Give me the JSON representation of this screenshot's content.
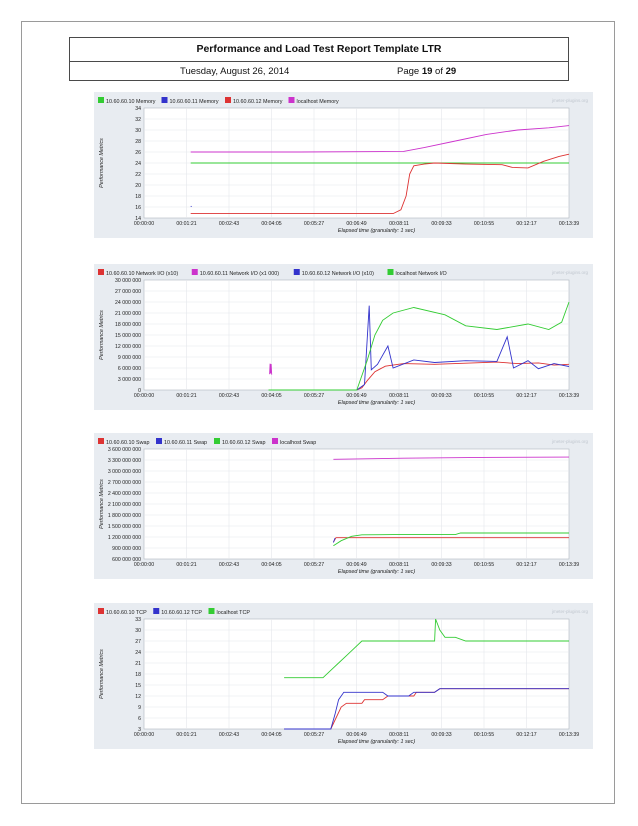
{
  "header": {
    "title": "Performance and Load Test Report Template LTR",
    "date": "Tuesday, August 26, 2014",
    "page_prefix": "Page",
    "page_current": "19",
    "page_of": "of",
    "page_total": "29"
  },
  "chart_data": [
    {
      "type": "line",
      "watermark": "jmeter-plugins.org",
      "ylabel": "Performance Metrics",
      "xlabel": "Elapsed time (granularity: 1 sec)",
      "x_ticks": [
        "00:00:00",
        "00:01:21",
        "00:02:43",
        "00:04:05",
        "00:05:27",
        "00:06:49",
        "00:08:11",
        "00:09:33",
        "00:10:55",
        "00:12:17",
        "00:13:39"
      ],
      "xlim_sec": [
        0,
        819
      ],
      "ylim": [
        14,
        34
      ],
      "y_ticks": [
        "14",
        "16",
        "18",
        "20",
        "22",
        "24",
        "26",
        "28",
        "30",
        "32",
        "34"
      ],
      "series": [
        {
          "name": "10.60.60.10 Memory",
          "color": "#33cc33",
          "points": [
            [
              90,
              24
            ],
            [
              819,
              24
            ]
          ]
        },
        {
          "name": "10.60.60.11 Memory",
          "color": "#3333cc",
          "points": [
            [
              90,
              16.1
            ],
            [
              92,
              16.1
            ]
          ]
        },
        {
          "name": "10.60.60.12 Memory",
          "color": "#dd3333",
          "points": [
            [
              90,
              14.8
            ],
            [
              480,
              14.8
            ],
            [
              495,
              15.5
            ],
            [
              505,
              18
            ],
            [
              512,
              22
            ],
            [
              520,
              23.5
            ],
            [
              540,
              23.8
            ],
            [
              560,
              24
            ],
            [
              620,
              23.8
            ],
            [
              690,
              23.7
            ],
            [
              710,
              23.2
            ],
            [
              740,
              23.1
            ],
            [
              770,
              24.3
            ],
            [
              800,
              25.2
            ],
            [
              819,
              25.6
            ]
          ]
        },
        {
          "name": "localhost Memory",
          "color": "#cc33cc",
          "points": [
            [
              90,
              26
            ],
            [
              300,
              26
            ],
            [
              500,
              26.1
            ],
            [
              540,
              26.8
            ],
            [
              600,
              28
            ],
            [
              660,
              29.2
            ],
            [
              720,
              30
            ],
            [
              780,
              30.4
            ],
            [
              819,
              30.8
            ]
          ]
        }
      ]
    },
    {
      "type": "line",
      "watermark": "jmeter-plugins.org",
      "ylabel": "Performance Metrics",
      "xlabel": "Elapsed time (granularity: 1 sec)",
      "x_ticks": [
        "00:00:00",
        "00:01:21",
        "00:02:43",
        "00:04:05",
        "00:05:27",
        "00:06:49",
        "00:08:11",
        "00:09:33",
        "00:10:55",
        "00:12:17",
        "00:13:39"
      ],
      "xlim_sec": [
        0,
        819
      ],
      "ylim": [
        0,
        30000000
      ],
      "y_ticks": [
        "0",
        "3 000 000",
        "6 000 000",
        "9 000 000",
        "12 000 000",
        "15 000 000",
        "18 000 000",
        "21 000 000",
        "24 000 000",
        "27 000 000",
        "30 000 000"
      ],
      "series": [
        {
          "name": "10.60.60.10 Network I/O (x10)",
          "color": "#dd3333",
          "points": [
            [
              410,
              0
            ],
            [
              420,
              600000
            ],
            [
              430,
              2500000
            ],
            [
              445,
              5000000
            ],
            [
              465,
              6500000
            ],
            [
              500,
              7200000
            ],
            [
              560,
              7000000
            ],
            [
              620,
              7300000
            ],
            [
              680,
              7600000
            ],
            [
              720,
              7200000
            ],
            [
              760,
              7400000
            ],
            [
              790,
              6800000
            ],
            [
              819,
              7000000
            ]
          ]
        },
        {
          "name": "10.60.60.11 Network I/O (x1 000)",
          "color": "#cc33cc",
          "points": [
            [
              242,
              4300000
            ],
            [
              243,
              7200000
            ],
            [
              244,
              4500000
            ],
            [
              245,
              7100000
            ],
            [
              246,
              4200000
            ]
          ]
        },
        {
          "name": "10.60.60.12 Network I/O (x10)",
          "color": "#3333cc",
          "points": [
            [
              410,
              0
            ],
            [
              425,
              1500000
            ],
            [
              434,
              23000000
            ],
            [
              438,
              5500000
            ],
            [
              450,
              7000000
            ],
            [
              470,
              12000000
            ],
            [
              480,
              6000000
            ],
            [
              520,
              8200000
            ],
            [
              560,
              7500000
            ],
            [
              620,
              8000000
            ],
            [
              680,
              7800000
            ],
            [
              700,
              14500000
            ],
            [
              712,
              6000000
            ],
            [
              740,
              8000000
            ],
            [
              760,
              5800000
            ],
            [
              790,
              7200000
            ],
            [
              819,
              6400000
            ]
          ]
        },
        {
          "name": "localhost Network I/O",
          "color": "#33cc33",
          "points": [
            [
              240,
              0
            ],
            [
              410,
              0
            ],
            [
              430,
              8000000
            ],
            [
              445,
              15000000
            ],
            [
              460,
              19000000
            ],
            [
              480,
              21000000
            ],
            [
              520,
              22500000
            ],
            [
              580,
              20500000
            ],
            [
              620,
              17500000
            ],
            [
              680,
              16500000
            ],
            [
              740,
              18000000
            ],
            [
              780,
              16500000
            ],
            [
              805,
              18500000
            ],
            [
              819,
              24000000
            ]
          ]
        }
      ]
    },
    {
      "type": "line",
      "watermark": "jmeter-plugins.org",
      "ylabel": "Performance Metrics",
      "xlabel": "Elapsed time (granularity: 1 sec)",
      "x_ticks": [
        "00:00:00",
        "00:01:21",
        "00:02:43",
        "00:04:05",
        "00:05:27",
        "00:06:49",
        "00:08:11",
        "00:09:33",
        "00:10:55",
        "00:12:17",
        "00:13:39"
      ],
      "xlim_sec": [
        0,
        819
      ],
      "ylim": [
        600000000,
        3600000000
      ],
      "y_ticks": [
        "600 000 000",
        "900 000 000",
        "1 200 000 000",
        "1 500 000 000",
        "1 800 000 000",
        "2 100 000 000",
        "2 400 000 000",
        "2 700 000 000",
        "3 000 000 000",
        "3 300 000 000",
        "3 600 000 000"
      ],
      "series": [
        {
          "name": "10.60.60.10 Swap",
          "color": "#dd3333",
          "points": [
            [
              365,
              1060000000
            ],
            [
              370,
              1180000000
            ],
            [
              819,
              1180000000
            ]
          ]
        },
        {
          "name": "10.60.60.11 Swap",
          "color": "#3333cc",
          "points": [
            [
              365,
              1050000000
            ],
            [
              368,
              1170000000
            ]
          ]
        },
        {
          "name": "10.60.60.12 Swap",
          "color": "#33cc33",
          "points": [
            [
              365,
              960000000
            ],
            [
              380,
              1100000000
            ],
            [
              400,
              1220000000
            ],
            [
              420,
              1260000000
            ],
            [
              480,
              1265000000
            ],
            [
              600,
              1265000000
            ],
            [
              610,
              1310000000
            ],
            [
              819,
              1310000000
            ]
          ]
        },
        {
          "name": "localhost Swap",
          "color": "#cc33cc",
          "points": [
            [
              365,
              3320000000
            ],
            [
              500,
              3350000000
            ],
            [
              650,
              3370000000
            ],
            [
              819,
              3380000000
            ]
          ]
        }
      ]
    },
    {
      "type": "line",
      "watermark": "jmeter-plugins.org",
      "ylabel": "Performance Metrics",
      "xlabel": "Elapsed time (granularity: 1 sec)",
      "x_ticks": [
        "00:00:00",
        "00:01:21",
        "00:02:43",
        "00:04:05",
        "00:05:27",
        "00:06:49",
        "00:08:11",
        "00:09:33",
        "00:10:55",
        "00:12:17",
        "00:13:39"
      ],
      "xlim_sec": [
        0,
        819
      ],
      "ylim": [
        3,
        33
      ],
      "y_ticks": [
        "3",
        "6",
        "9",
        "12",
        "15",
        "18",
        "21",
        "24",
        "27",
        "30",
        "33"
      ],
      "series": [
        {
          "name": "10.60.60.10 TCP",
          "color": "#dd3333",
          "points": [
            [
              270,
              3
            ],
            [
              360,
              3
            ],
            [
              370,
              6
            ],
            [
              380,
              9
            ],
            [
              390,
              10
            ],
            [
              420,
              10
            ],
            [
              425,
              11
            ],
            [
              460,
              11
            ],
            [
              470,
              12
            ],
            [
              520,
              12
            ],
            [
              525,
              13
            ],
            [
              560,
              13
            ],
            [
              570,
              14
            ],
            [
              819,
              14
            ]
          ]
        },
        {
          "name": "10.60.60.12 TCP",
          "color": "#3333cc",
          "points": [
            [
              270,
              3
            ],
            [
              360,
              3
            ],
            [
              368,
              7
            ],
            [
              375,
              11
            ],
            [
              385,
              13
            ],
            [
              460,
              13
            ],
            [
              470,
              12
            ],
            [
              510,
              12
            ],
            [
              520,
              13
            ],
            [
              560,
              13
            ],
            [
              570,
              14
            ],
            [
              819,
              14
            ]
          ]
        },
        {
          "name": "localhost TCP",
          "color": "#33cc33",
          "points": [
            [
              270,
              17
            ],
            [
              345,
              17
            ],
            [
              360,
              19
            ],
            [
              375,
              21
            ],
            [
              390,
              23
            ],
            [
              405,
              25
            ],
            [
              420,
              27
            ],
            [
              560,
              27
            ],
            [
              562,
              33
            ],
            [
              570,
              30
            ],
            [
              580,
              28
            ],
            [
              600,
              28
            ],
            [
              620,
              27
            ],
            [
              819,
              27
            ]
          ]
        }
      ]
    }
  ]
}
